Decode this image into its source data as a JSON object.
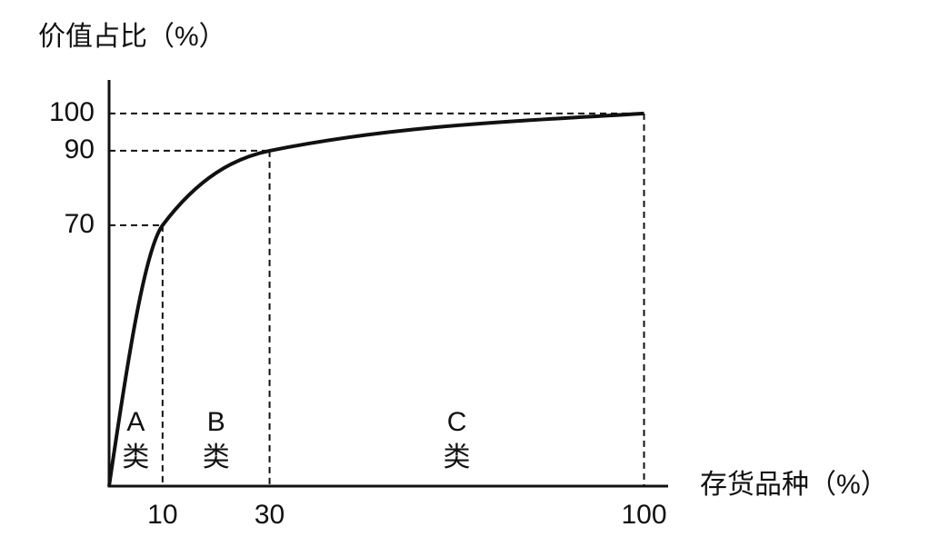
{
  "chart_data": {
    "type": "line",
    "y_label": "价值占比（%）",
    "x_label": "存货品种（%）",
    "x": [
      0,
      10,
      30,
      100
    ],
    "values": [
      0,
      70,
      90,
      100
    ],
    "color": "#111111",
    "xlim": [
      0,
      104.5
    ],
    "xticks": [
      10,
      30,
      100
    ],
    "ylim": [
      0,
      109
    ],
    "yticks": [
      70,
      90,
      100
    ],
    "guides": true,
    "regions": [
      [
        "A",
        "类"
      ],
      [
        "B",
        "类"
      ],
      [
        "C",
        "类"
      ]
    ]
  }
}
